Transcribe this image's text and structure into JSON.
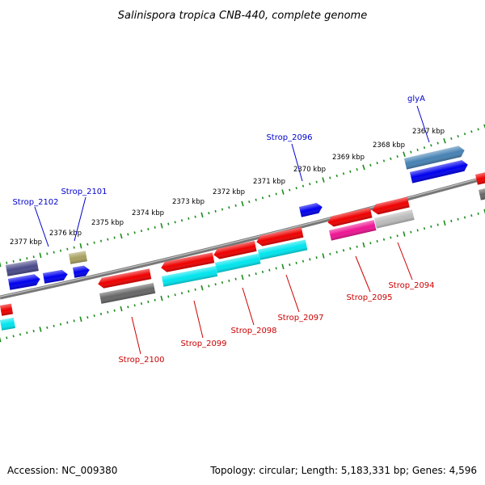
{
  "title": "Salinispora tropica CNB-440, complete genome",
  "accession": "Accession: NC_009380",
  "summary": "Topology: circular; Length: 5,183,331 bp; Genes: 4,596",
  "colors": {
    "background": "#ffffff",
    "backbone": "#8a8a8a",
    "tick": "#1e8c1e",
    "label_forward": "#0000cc",
    "label_reverse": "#cc0000",
    "gene_blue": "#0000ee",
    "gene_red": "#ee0000",
    "gene_cyan": "#00e5ee",
    "gene_gray": "#666666",
    "gene_lightgray": "#bbbbbb",
    "gene_pink": "#ee1493",
    "gene_olive": "#a8a060",
    "gene_slate": "#4a4a8a",
    "gene_steel": "#4682b4"
  },
  "ticks": [
    "2367 kbp",
    "2368 kbp",
    "2369 kbp",
    "2370 kbp",
    "2371 kbp",
    "2372 kbp",
    "2373 kbp",
    "2374 kbp",
    "2375 kbp",
    "2376 kbp",
    "2377 kbp"
  ],
  "gene_labels": {
    "forward": [
      "glyA",
      "Strop_2096",
      "Strop_2101",
      "Strop_2102"
    ],
    "reverse": [
      "Strop_2094",
      "Strop_2095",
      "Strop_2097",
      "Strop_2098",
      "Strop_2099",
      "Strop_2100"
    ]
  }
}
